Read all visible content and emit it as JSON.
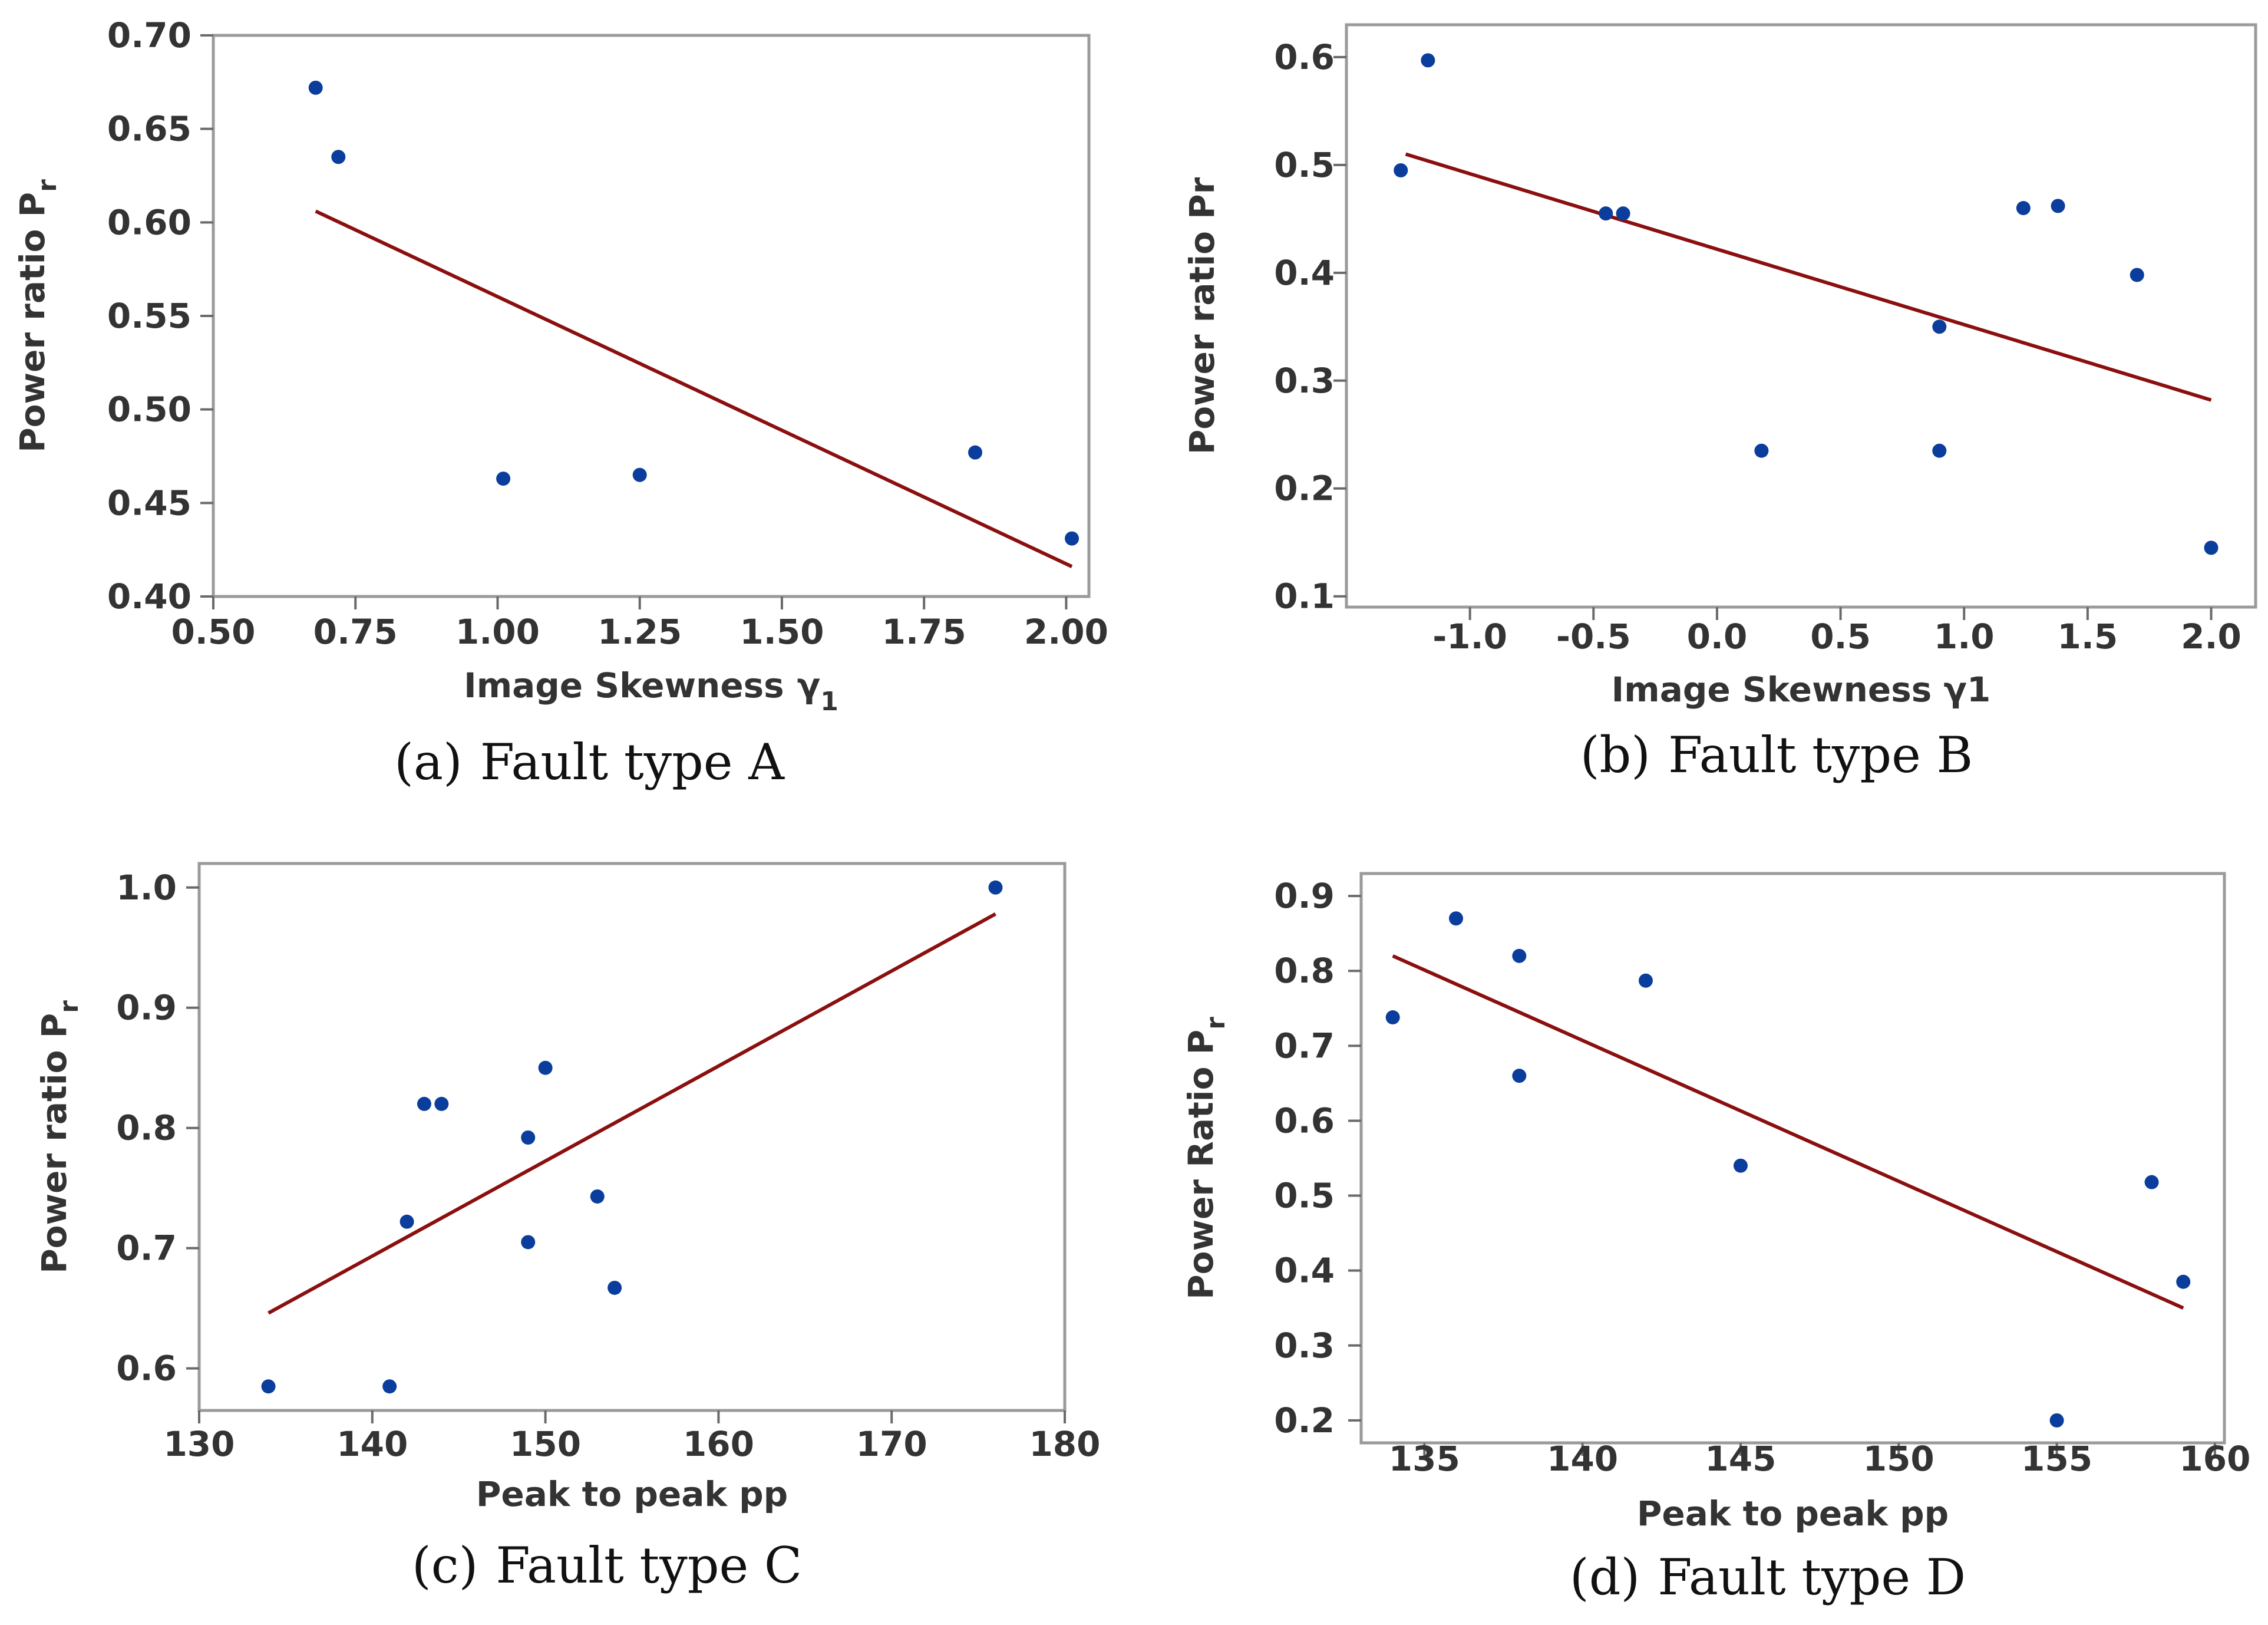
{
  "chart_data": [
    {
      "type": "scatter",
      "panel": "a",
      "caption": {
        "letter": "(a)",
        "text": "Fault type A"
      },
      "xlabel": "Image Skewness",
      "xlabel_symbol": "γ",
      "xlabel_subscript": "1",
      "ylabel": "Power ratio P",
      "ylabel_subscript": "r",
      "xlim": [
        0.5,
        2.04
      ],
      "ylim": [
        0.4,
        0.7
      ],
      "xticks": [
        "0.50",
        "0.75",
        "1.00",
        "1.25",
        "1.50",
        "1.75",
        "2.00"
      ],
      "yticks": [
        "0.40",
        "0.45",
        "0.50",
        "0.55",
        "0.60",
        "0.65",
        "0.70"
      ],
      "points": [
        [
          0.68,
          0.672
        ],
        [
          0.72,
          0.635
        ],
        [
          1.01,
          0.463
        ],
        [
          1.25,
          0.465
        ],
        [
          1.84,
          0.477
        ],
        [
          2.01,
          0.431
        ]
      ],
      "fit_line": [
        [
          0.68,
          0.606
        ],
        [
          2.01,
          0.416
        ]
      ],
      "grid": false,
      "colors": {
        "point": "#0a3d9c",
        "line": "#8b0f0f"
      }
    },
    {
      "type": "scatter",
      "panel": "b",
      "caption": {
        "letter": "(b)",
        "text": "Fault type B"
      },
      "xlabel": "Image Skewness  γ1",
      "ylabel": "Power ratio Pr",
      "xlim": [
        -1.5,
        2.18
      ],
      "ylim": [
        0.09,
        0.63
      ],
      "xticks": [
        "-1.0",
        "-0.5",
        "0.0",
        "0.5",
        "1.0",
        "1.5",
        "2.0"
      ],
      "yticks": [
        "0.1",
        "0.2",
        "0.3",
        "0.4",
        "0.5",
        "0.6"
      ],
      "points": [
        [
          -1.28,
          0.495
        ],
        [
          -1.17,
          0.597
        ],
        [
          -0.45,
          0.455
        ],
        [
          -0.38,
          0.455
        ],
        [
          0.18,
          0.235
        ],
        [
          0.9,
          0.35
        ],
        [
          0.9,
          0.235
        ],
        [
          1.24,
          0.46
        ],
        [
          1.38,
          0.462
        ],
        [
          1.7,
          0.398
        ],
        [
          2.0,
          0.145
        ]
      ],
      "fit_line": [
        [
          -1.26,
          0.51
        ],
        [
          2.0,
          0.282
        ]
      ],
      "grid": false,
      "colors": {
        "point": "#0a3d9c",
        "line": "#8b0f0f"
      }
    },
    {
      "type": "scatter",
      "panel": "c",
      "caption": {
        "letter": "(c)",
        "text": "Fault type C"
      },
      "xlabel": "Peak to peak  pp",
      "ylabel": "Power ratio P",
      "ylabel_subscript": "r",
      "xlim": [
        130,
        180
      ],
      "ylim": [
        0.565,
        1.02
      ],
      "xticks": [
        "130",
        "140",
        "150",
        "160",
        "170",
        "180"
      ],
      "yticks": [
        "0.6",
        "0.7",
        "0.8",
        "0.9",
        "1.0"
      ],
      "points": [
        [
          134,
          0.585
        ],
        [
          141,
          0.585
        ],
        [
          142,
          0.722
        ],
        [
          143,
          0.82
        ],
        [
          144,
          0.82
        ],
        [
          149,
          0.792
        ],
        [
          149,
          0.705
        ],
        [
          150,
          0.85
        ],
        [
          153,
          0.743
        ],
        [
          154,
          0.667
        ],
        [
          176,
          1.0
        ]
      ],
      "fit_line": [
        [
          134,
          0.646
        ],
        [
          176,
          0.978
        ]
      ],
      "grid": false,
      "colors": {
        "point": "#0a3d9c",
        "line": "#8b0f0f"
      }
    },
    {
      "type": "scatter",
      "panel": "d",
      "caption": {
        "letter": "(d)",
        "text": "Fault type D"
      },
      "xlabel": "Peak to peak  pp",
      "ylabel": "Power Ratio P",
      "ylabel_subscript": "r",
      "xlim": [
        133,
        160.3
      ],
      "ylim": [
        0.17,
        0.93
      ],
      "xticks": [
        "135",
        "140",
        "145",
        "150",
        "155",
        "160"
      ],
      "yticks": [
        "0.2",
        "0.3",
        "0.4",
        "0.5",
        "0.6",
        "0.7",
        "0.8",
        "0.9"
      ],
      "points": [
        [
          134,
          0.738
        ],
        [
          136,
          0.87
        ],
        [
          138,
          0.82
        ],
        [
          138,
          0.66
        ],
        [
          142,
          0.787
        ],
        [
          145,
          0.54
        ],
        [
          155,
          0.2
        ],
        [
          158,
          0.518
        ],
        [
          159,
          0.385
        ]
      ],
      "fit_line": [
        [
          134,
          0.82
        ],
        [
          159,
          0.35
        ]
      ],
      "grid": false,
      "colors": {
        "point": "#0a3d9c",
        "line": "#8b0f0f"
      }
    }
  ]
}
